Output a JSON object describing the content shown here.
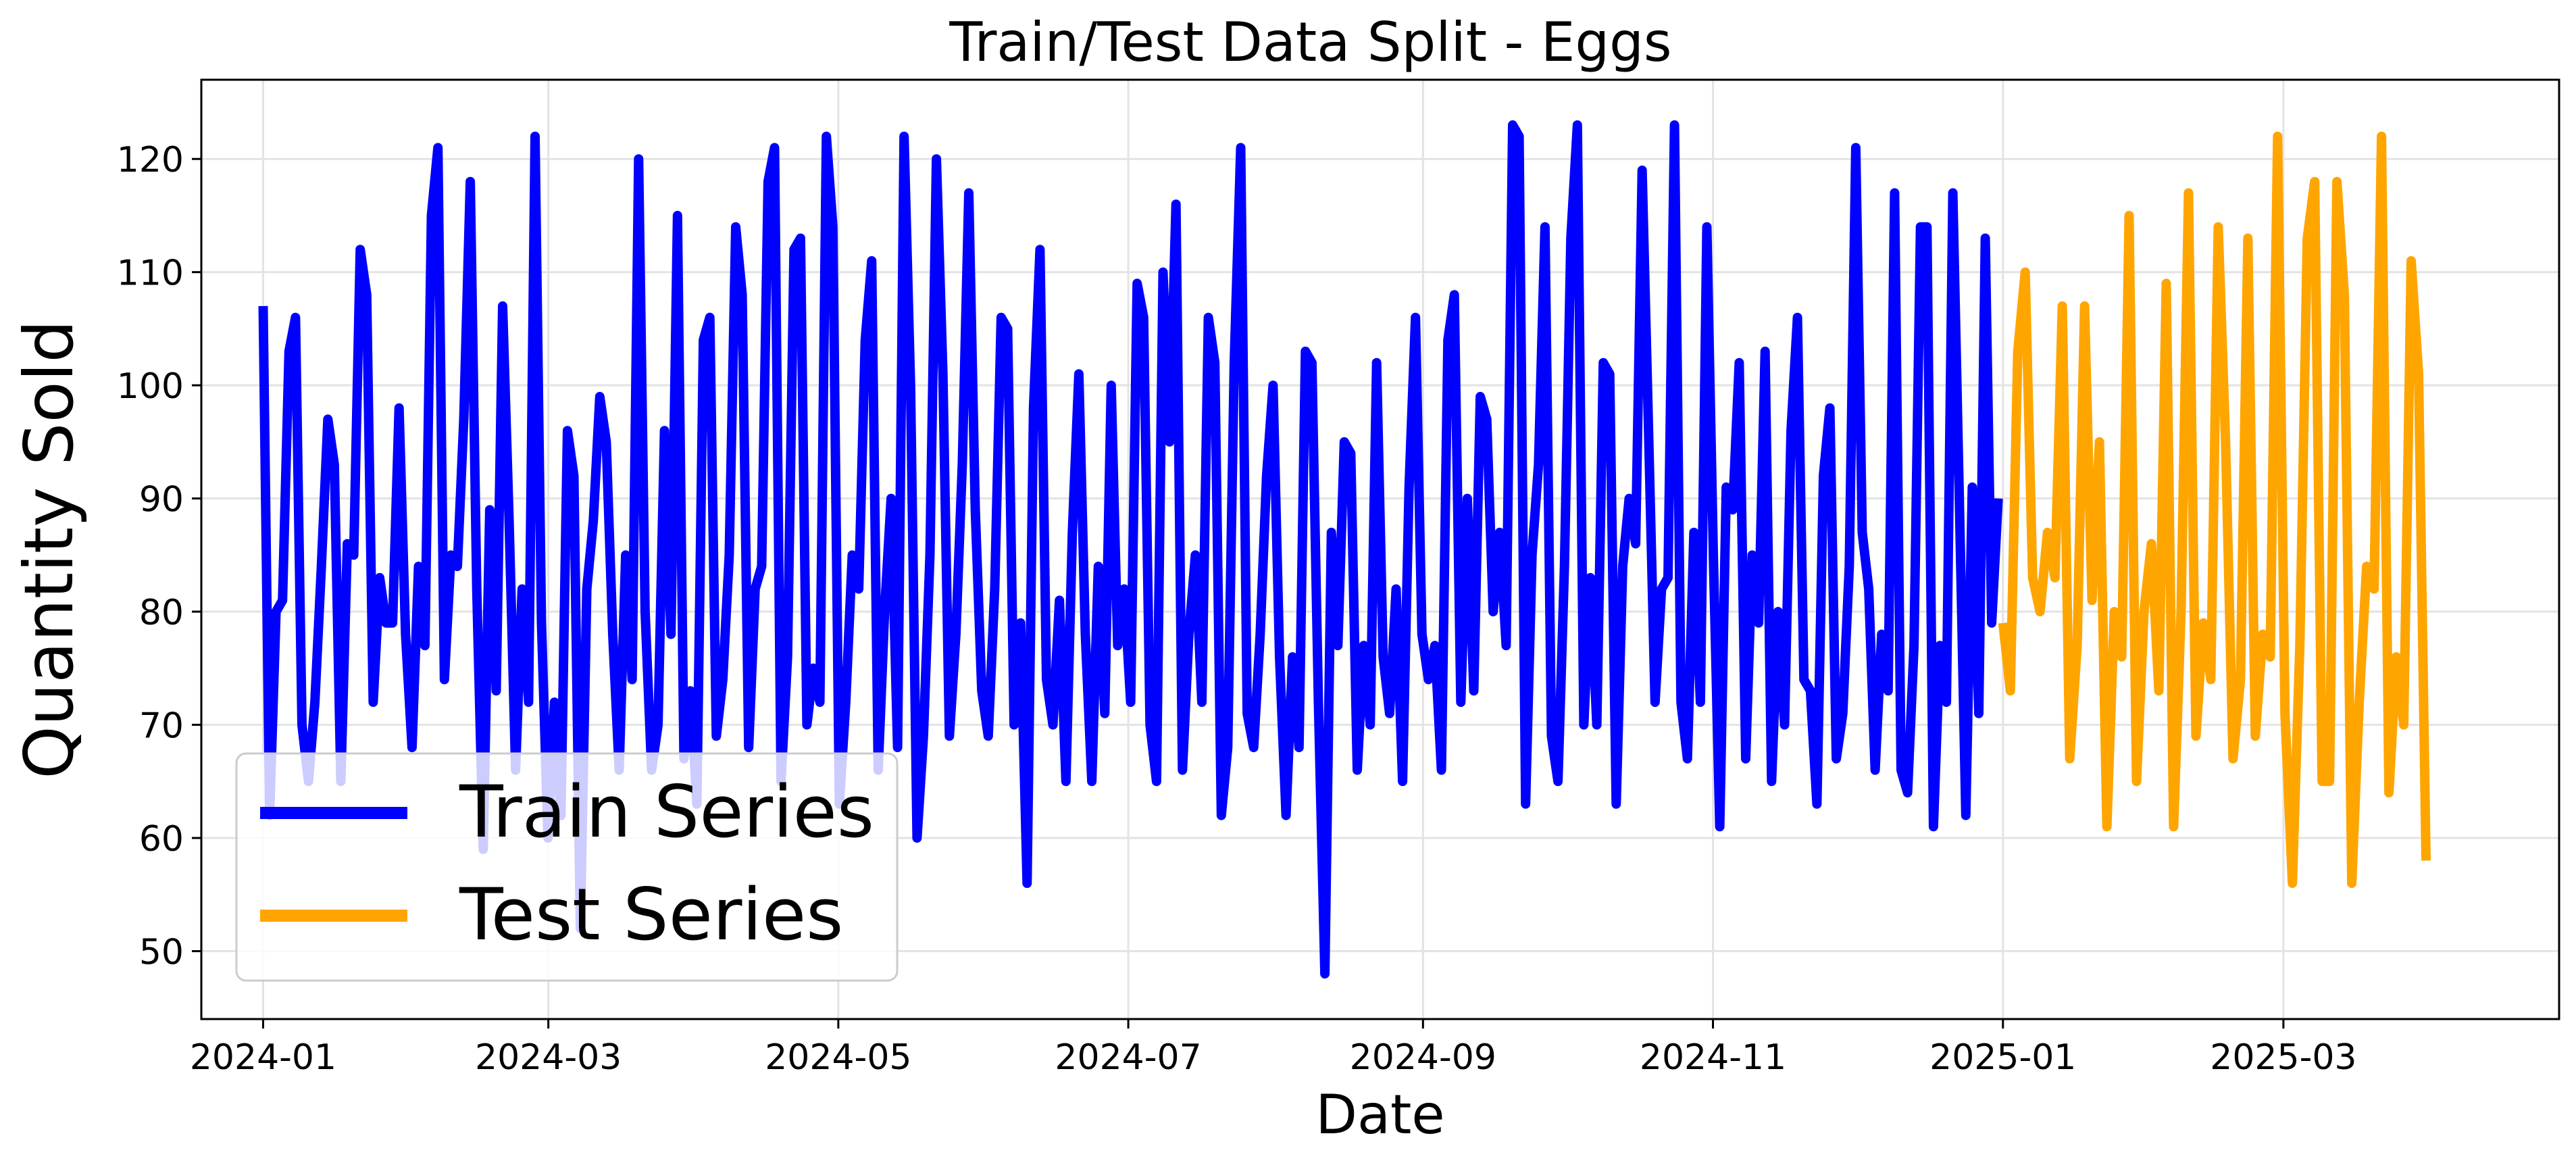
{
  "chart_data": {
    "type": "line",
    "title": "Train/Test Data Split - Eggs",
    "xlabel": "Date",
    "ylabel": "Quantity Sold",
    "x_ticks": [
      "2024-01",
      "2024-03",
      "2024-05",
      "2024-07",
      "2024-09",
      "2024-11",
      "2025-01",
      "2025-03"
    ],
    "y_ticks": [
      50,
      60,
      70,
      80,
      90,
      100,
      110,
      120
    ],
    "xlim": [
      "2023-12-19",
      "2025-04-28"
    ],
    "ylim": [
      44,
      127
    ],
    "grid": true,
    "legend": "lower-left",
    "series": [
      {
        "name": "Train Series",
        "color": "#0000ff",
        "start": "2024-01-01",
        "end": "2024-12-31",
        "interval_days": 2,
        "values": [
          107,
          62,
          80,
          81,
          103,
          106,
          70,
          65,
          72,
          84,
          97,
          93,
          65,
          86,
          85,
          112,
          108,
          72,
          83,
          79,
          79,
          98,
          78,
          68,
          84,
          77,
          115,
          121,
          74,
          85,
          84,
          97,
          118,
          82,
          59,
          89,
          73,
          107,
          88,
          66,
          82,
          72,
          122,
          79,
          60,
          72,
          62,
          96,
          92,
          52,
          82,
          88,
          99,
          95,
          78,
          66,
          85,
          74,
          120,
          80,
          66,
          70,
          96,
          78,
          115,
          67,
          73,
          63,
          104,
          106,
          69,
          74,
          85,
          114,
          108,
          68,
          82,
          84,
          118,
          121,
          65,
          76,
          112,
          113,
          70,
          75,
          72,
          122,
          114,
          63,
          72,
          85,
          82,
          104,
          111,
          66,
          80,
          90,
          68,
          122,
          100,
          60,
          69,
          85,
          120,
          101,
          69,
          78,
          93,
          117,
          89,
          73,
          69,
          82,
          106,
          105,
          70,
          79,
          56,
          98,
          112,
          74,
          70,
          81,
          65,
          87,
          101,
          78,
          65,
          84,
          71,
          100,
          77,
          82,
          72,
          109,
          106,
          70,
          65,
          110,
          95,
          116,
          66,
          78,
          85,
          72,
          106,
          102,
          62,
          68,
          102,
          121,
          71,
          68,
          78,
          92,
          100,
          76,
          62,
          76,
          68,
          103,
          102,
          72,
          48,
          87,
          77,
          95,
          94,
          66,
          77,
          70,
          102,
          76,
          71,
          82,
          65,
          91,
          106,
          78,
          74,
          77,
          66,
          104,
          108,
          72,
          90,
          73,
          99,
          97,
          80,
          87,
          77,
          123,
          122,
          63,
          85,
          93,
          114,
          69,
          65,
          84,
          113,
          123,
          70,
          83,
          70,
          102,
          101,
          63,
          84,
          90,
          86,
          119,
          96,
          72,
          82,
          83,
          123,
          72,
          67,
          87,
          72,
          114,
          85,
          61,
          91,
          89,
          102,
          67,
          85,
          79,
          103,
          65,
          80,
          70,
          96,
          106,
          74,
          73,
          63,
          92,
          98,
          67,
          71,
          84,
          121,
          87,
          82,
          66,
          78,
          73,
          117,
          66,
          64,
          77,
          114,
          114,
          61,
          77,
          72,
          117,
          90,
          62,
          91,
          71,
          113,
          79,
          90
        ]
      },
      {
        "name": "Test Series",
        "color": "#ffa500",
        "start": "2025-01-01",
        "end": "2025-03-31",
        "interval_days": 2,
        "values": [
          79,
          73,
          103,
          110,
          83,
          80,
          87,
          83,
          107,
          67,
          77,
          107,
          81,
          95,
          61,
          80,
          76,
          115,
          65,
          80,
          86,
          73,
          109,
          61,
          80,
          117,
          69,
          79,
          74,
          114,
          95,
          67,
          74,
          113,
          69,
          78,
          76,
          122,
          71,
          56,
          77,
          113,
          118,
          65,
          65,
          118,
          108,
          56,
          72,
          84,
          82,
          122,
          64,
          76,
          70,
          111,
          101,
          58
        ]
      }
    ]
  }
}
